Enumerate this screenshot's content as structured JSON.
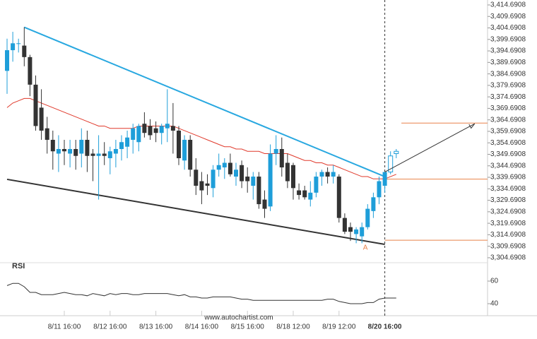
{
  "chart_data": {
    "type": "candlestick",
    "up_color": "#1e9ed9",
    "down_color": "#333333",
    "ma_color": "#e0392b",
    "categories": [
      null,
      null,
      null,
      null,
      null,
      null,
      null,
      null,
      null,
      null,
      "8/11 16:00",
      null,
      null,
      null,
      null,
      null,
      null,
      null,
      "8/12 16:00",
      null,
      null,
      null,
      null,
      null,
      null,
      null,
      "8/13 16:00",
      null,
      null,
      null,
      null,
      null,
      null,
      null,
      "8/14 16:00",
      null,
      null,
      null,
      null,
      null,
      null,
      null,
      "8/15 16:00",
      null,
      null,
      null,
      null,
      null,
      null,
      null,
      "8/18 12:00",
      null,
      null,
      null,
      null,
      null,
      null,
      null,
      "8/19 12:00",
      null,
      null,
      null,
      null,
      null,
      null,
      null,
      "8/20 16:00",
      null,
      null
    ],
    "current_category": 66,
    "projection_start": 67,
    "ohlc": [
      [
        3386,
        3400,
        3376,
        3395
      ],
      [
        3395,
        3403,
        3390,
        3398
      ],
      [
        3398,
        3400,
        3394,
        3398
      ],
      [
        3397,
        3405,
        3388,
        3392
      ],
      [
        3392,
        3393,
        3375,
        3380
      ],
      [
        3380,
        3384,
        3360,
        3362
      ],
      [
        3370,
        3378,
        3356,
        3360
      ],
      [
        3361,
        3366,
        3350,
        3356
      ],
      [
        3356,
        3360,
        3343,
        3351
      ],
      [
        3350,
        3358,
        3342,
        3352
      ],
      [
        3352,
        3356,
        3345,
        3351
      ],
      [
        3350,
        3356,
        3344,
        3352
      ],
      [
        3352,
        3356,
        3343,
        3349
      ],
      [
        3350,
        3361,
        3344,
        3356
      ],
      [
        3356,
        3360,
        3342,
        3349
      ],
      [
        3350,
        3352,
        3338,
        3349
      ],
      [
        3349,
        3358,
        3330,
        3350
      ],
      [
        3350,
        3355,
        3345,
        3349
      ],
      [
        3348,
        3353,
        3341,
        3351
      ],
      [
        3350,
        3356,
        3344,
        3352
      ],
      [
        3352,
        3358,
        3347,
        3355
      ],
      [
        3353,
        3360,
        3348,
        3357
      ],
      [
        3356,
        3363,
        3350,
        3361
      ],
      [
        3355,
        3363,
        3351,
        3362
      ],
      [
        3363,
        3368,
        3357,
        3359
      ],
      [
        3362,
        3365,
        3356,
        3358
      ],
      [
        3361,
        3364,
        3355,
        3359
      ],
      [
        3359,
        3363,
        3354,
        3362
      ],
      [
        3361,
        3378,
        3355,
        3363
      ],
      [
        3362,
        3372,
        3350,
        3360
      ],
      [
        3360,
        3362,
        3345,
        3348
      ],
      [
        3347,
        3358,
        3343,
        3356
      ],
      [
        3356,
        3358,
        3340,
        3343
      ],
      [
        3343,
        3348,
        3332,
        3336
      ],
      [
        3338,
        3342,
        3328,
        3334
      ],
      [
        3337,
        3341,
        3332,
        3336
      ],
      [
        3335,
        3345,
        3331,
        3343
      ],
      [
        3343,
        3350,
        3340,
        3345
      ],
      [
        3344,
        3348,
        3339,
        3346
      ],
      [
        3346,
        3350,
        3340,
        3341
      ],
      [
        3340,
        3346,
        3336,
        3343
      ],
      [
        3345,
        3347,
        3335,
        3338
      ],
      [
        3340,
        3344,
        3333,
        3338
      ],
      [
        3336,
        3342,
        3330,
        3340
      ],
      [
        3340,
        3342,
        3326,
        3328
      ],
      [
        3330,
        3334,
        3322,
        3326
      ],
      [
        3327,
        3354,
        3325,
        3350
      ],
      [
        3350,
        3358,
        3345,
        3352
      ],
      [
        3352,
        3357,
        3340,
        3344
      ],
      [
        3346,
        3350,
        3335,
        3338
      ],
      [
        3345,
        3346,
        3330,
        3335
      ],
      [
        3334,
        3337,
        3330,
        3332
      ],
      [
        3334,
        3336,
        3330,
        3331
      ],
      [
        3330,
        3338,
        3327,
        3333
      ],
      [
        3333,
        3342,
        3331,
        3340
      ],
      [
        3340,
        3343,
        3336,
        3342
      ],
      [
        3342,
        3344,
        3337,
        3340
      ],
      [
        3340,
        3345,
        3337,
        3342
      ],
      [
        3340,
        3341,
        3320,
        3322
      ],
      [
        3322,
        3324,
        3315,
        3316
      ],
      [
        3318,
        3320,
        3312,
        3316
      ],
      [
        3315,
        3318,
        3311,
        3317
      ],
      [
        3314,
        3320,
        3311,
        3318
      ],
      [
        3318,
        3328,
        3317,
        3326
      ],
      [
        3325,
        3333,
        3322,
        3331
      ],
      [
        3331,
        3340,
        3328,
        3338
      ],
      [
        3336,
        3342,
        3333,
        3342
      ],
      [
        3342,
        3351,
        3341,
        3349
      ],
      [
        3350,
        3352,
        3348,
        3351
      ]
    ],
    "ma": [
      3370,
      3372,
      3373,
      3374,
      3374,
      3373,
      3372,
      3371,
      3370,
      3369,
      3368,
      3367,
      3366,
      3365,
      3364,
      3363,
      3362,
      3362,
      3361,
      3361,
      3361,
      3361,
      3361,
      3362,
      3362,
      3362,
      3362,
      3362,
      3362,
      3362,
      3361,
      3360,
      3359,
      3358,
      3357,
      3356,
      3355,
      3354,
      3353,
      3353,
      3352,
      3352,
      3351,
      3351,
      3351,
      3350,
      3350,
      3350,
      3350,
      3350,
      3349,
      3348,
      3347,
      3347,
      3346,
      3346,
      3345,
      3345,
      3344,
      3343,
      3342,
      3341,
      3340,
      3340,
      3339,
      3339,
      3339,
      3340,
      3341
    ],
    "ylim": [
      3302.52,
      3416.84
    ],
    "yticks": [
      {
        "value": 3414.6908,
        "label": "3,414.6908"
      },
      {
        "value": 3409.6908,
        "label": "3,409.6908"
      },
      {
        "value": 3404.6908,
        "label": "3,404.6908"
      },
      {
        "value": 3399.6908,
        "label": "3,399.6908"
      },
      {
        "value": 3394.6908,
        "label": "3,394.6908"
      },
      {
        "value": 3389.6908,
        "label": "3,389.6908"
      },
      {
        "value": 3384.6908,
        "label": "3,384.6908"
      },
      {
        "value": 3379.6908,
        "label": "3,379.6908"
      },
      {
        "value": 3374.6908,
        "label": "3,374.6908"
      },
      {
        "value": 3369.6908,
        "label": "3,369.6908"
      },
      {
        "value": 3364.6908,
        "label": "3,364.6908"
      },
      {
        "value": 3359.6908,
        "label": "3,359.6908"
      },
      {
        "value": 3354.6908,
        "label": "3,354.6908"
      },
      {
        "value": 3349.6908,
        "label": "3,349.6908"
      },
      {
        "value": 3344.6908,
        "label": "3,344.6908"
      },
      {
        "value": 3339.6908,
        "label": "3,339.6908"
      },
      {
        "value": 3334.6908,
        "label": "3,334.6908"
      },
      {
        "value": 3329.6908,
        "label": "3,329.6908"
      },
      {
        "value": 3324.6908,
        "label": "3,324.6908"
      },
      {
        "value": 3319.6908,
        "label": "3,319.6908"
      },
      {
        "value": 3314.6908,
        "label": "3,314.6908"
      },
      {
        "value": 3309.6908,
        "label": "3,309.6908"
      },
      {
        "value": 3304.6908,
        "label": "3,304.6908"
      }
    ],
    "trendlines": [
      {
        "color": "#29a8e0",
        "start": [
          3,
          3405
        ],
        "end": [
          66,
          3340
        ]
      },
      {
        "color": "#333333",
        "start": [
          0,
          3338.8
        ],
        "end": [
          66,
          3310.5
        ]
      }
    ],
    "levels": [
      {
        "color": "#e8824a",
        "from": 66,
        "value": 3338.9
      },
      {
        "color": "#e8824a",
        "from": 66,
        "value": 3312.3
      },
      {
        "color": "#e8824a",
        "from": 68.9,
        "value": 3363.3
      }
    ],
    "arrow": {
      "start": [
        66,
        3342
      ],
      "end": [
        81.7,
        3363
      ]
    },
    "point_label": {
      "text": "A",
      "at": [
        62.6,
        3309
      ]
    },
    "rsi_label": "RSI",
    "rsi_ylim": [
      33.75,
      74.375
    ],
    "rsi_ticks": [
      60,
      40
    ],
    "rsi": [
      56,
      58,
      58,
      55,
      50,
      50,
      48,
      48,
      48,
      49,
      50,
      49,
      48,
      48,
      47,
      49,
      48,
      47,
      49,
      48,
      49,
      49,
      48,
      48,
      49,
      49,
      49,
      49,
      49,
      48,
      47,
      48,
      46,
      46,
      45,
      45,
      46,
      46,
      46,
      46,
      45,
      44,
      44,
      43,
      43,
      43,
      43,
      43,
      43,
      43,
      43,
      43,
      43,
      43,
      43,
      43,
      44,
      44,
      42,
      41,
      40,
      40,
      40,
      41,
      41,
      44,
      45,
      45,
      45
    ],
    "source": "www.autochartist.com"
  }
}
